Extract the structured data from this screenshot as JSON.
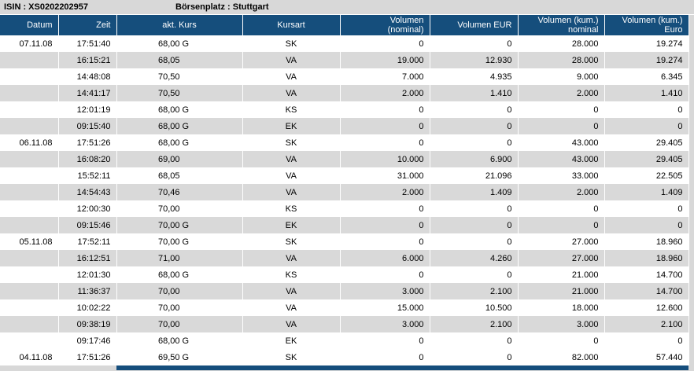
{
  "colors": {
    "header_bg": "#154e7c",
    "row_alt_bg": "#d9d9d9",
    "info_bg": "#d8d8d8",
    "page_bg": "#d8d8d8"
  },
  "info_bar": {
    "isin_label": "ISIN : XS0202202957",
    "boersenplatz_label": "Börsenplatz : Stuttgart"
  },
  "table": {
    "columns": [
      {
        "label": "Datum",
        "align": "right"
      },
      {
        "label": "Zeit",
        "align": "right"
      },
      {
        "label": "akt. Kurs",
        "align": "center"
      },
      {
        "label": "Kursart",
        "align": "center"
      },
      {
        "label": "Volumen\n(nominal)",
        "align": "right"
      },
      {
        "label": "Volumen EUR",
        "align": "right"
      },
      {
        "label": "Volumen (kum.)\nnominal",
        "align": "right"
      },
      {
        "label": "Volumen (kum.)\nEuro",
        "align": "right"
      }
    ],
    "rows": [
      {
        "datum": "07.11.08",
        "zeit": "17:51:40",
        "kurs": "68,00",
        "kurs_suffix": "G",
        "kursart": "SK",
        "vol_nominal": "0",
        "vol_eur": "0",
        "vol_kum_nominal": "28.000",
        "vol_kum_euro": "19.274"
      },
      {
        "datum": "",
        "zeit": "16:15:21",
        "kurs": "68,05",
        "kurs_suffix": "",
        "kursart": "VA",
        "vol_nominal": "19.000",
        "vol_eur": "12.930",
        "vol_kum_nominal": "28.000",
        "vol_kum_euro": "19.274"
      },
      {
        "datum": "",
        "zeit": "14:48:08",
        "kurs": "70,50",
        "kurs_suffix": "",
        "kursart": "VA",
        "vol_nominal": "7.000",
        "vol_eur": "4.935",
        "vol_kum_nominal": "9.000",
        "vol_kum_euro": "6.345"
      },
      {
        "datum": "",
        "zeit": "14:41:17",
        "kurs": "70,50",
        "kurs_suffix": "",
        "kursart": "VA",
        "vol_nominal": "2.000",
        "vol_eur": "1.410",
        "vol_kum_nominal": "2.000",
        "vol_kum_euro": "1.410"
      },
      {
        "datum": "",
        "zeit": "12:01:19",
        "kurs": "68,00",
        "kurs_suffix": "G",
        "kursart": "KS",
        "vol_nominal": "0",
        "vol_eur": "0",
        "vol_kum_nominal": "0",
        "vol_kum_euro": "0"
      },
      {
        "datum": "",
        "zeit": "09:15:40",
        "kurs": "68,00",
        "kurs_suffix": "G",
        "kursart": "EK",
        "vol_nominal": "0",
        "vol_eur": "0",
        "vol_kum_nominal": "0",
        "vol_kum_euro": "0"
      },
      {
        "datum": "06.11.08",
        "zeit": "17:51:26",
        "kurs": "68,00",
        "kurs_suffix": "G",
        "kursart": "SK",
        "vol_nominal": "0",
        "vol_eur": "0",
        "vol_kum_nominal": "43.000",
        "vol_kum_euro": "29.405"
      },
      {
        "datum": "",
        "zeit": "16:08:20",
        "kurs": "69,00",
        "kurs_suffix": "",
        "kursart": "VA",
        "vol_nominal": "10.000",
        "vol_eur": "6.900",
        "vol_kum_nominal": "43.000",
        "vol_kum_euro": "29.405"
      },
      {
        "datum": "",
        "zeit": "15:52:11",
        "kurs": "68,05",
        "kurs_suffix": "",
        "kursart": "VA",
        "vol_nominal": "31.000",
        "vol_eur": "21.096",
        "vol_kum_nominal": "33.000",
        "vol_kum_euro": "22.505"
      },
      {
        "datum": "",
        "zeit": "14:54:43",
        "kurs": "70,46",
        "kurs_suffix": "",
        "kursart": "VA",
        "vol_nominal": "2.000",
        "vol_eur": "1.409",
        "vol_kum_nominal": "2.000",
        "vol_kum_euro": "1.409"
      },
      {
        "datum": "",
        "zeit": "12:00:30",
        "kurs": "70,00",
        "kurs_suffix": "",
        "kursart": "KS",
        "vol_nominal": "0",
        "vol_eur": "0",
        "vol_kum_nominal": "0",
        "vol_kum_euro": "0"
      },
      {
        "datum": "",
        "zeit": "09:15:46",
        "kurs": "70,00",
        "kurs_suffix": "G",
        "kursart": "EK",
        "vol_nominal": "0",
        "vol_eur": "0",
        "vol_kum_nominal": "0",
        "vol_kum_euro": "0"
      },
      {
        "datum": "05.11.08",
        "zeit": "17:52:11",
        "kurs": "70,00",
        "kurs_suffix": "G",
        "kursart": "SK",
        "vol_nominal": "0",
        "vol_eur": "0",
        "vol_kum_nominal": "27.000",
        "vol_kum_euro": "18.960"
      },
      {
        "datum": "",
        "zeit": "16:12:51",
        "kurs": "71,00",
        "kurs_suffix": "",
        "kursart": "VA",
        "vol_nominal": "6.000",
        "vol_eur": "4.260",
        "vol_kum_nominal": "27.000",
        "vol_kum_euro": "18.960"
      },
      {
        "datum": "",
        "zeit": "12:01:30",
        "kurs": "68,00",
        "kurs_suffix": "G",
        "kursart": "KS",
        "vol_nominal": "0",
        "vol_eur": "0",
        "vol_kum_nominal": "21.000",
        "vol_kum_euro": "14.700"
      },
      {
        "datum": "",
        "zeit": "11:36:37",
        "kurs": "70,00",
        "kurs_suffix": "",
        "kursart": "VA",
        "vol_nominal": "3.000",
        "vol_eur": "2.100",
        "vol_kum_nominal": "21.000",
        "vol_kum_euro": "14.700"
      },
      {
        "datum": "",
        "zeit": "10:02:22",
        "kurs": "70,00",
        "kurs_suffix": "",
        "kursart": "VA",
        "vol_nominal": "15.000",
        "vol_eur": "10.500",
        "vol_kum_nominal": "18.000",
        "vol_kum_euro": "12.600"
      },
      {
        "datum": "",
        "zeit": "09:38:19",
        "kurs": "70,00",
        "kurs_suffix": "",
        "kursart": "VA",
        "vol_nominal": "3.000",
        "vol_eur": "2.100",
        "vol_kum_nominal": "3.000",
        "vol_kum_euro": "2.100"
      },
      {
        "datum": "",
        "zeit": "09:17:46",
        "kurs": "68,00",
        "kurs_suffix": "G",
        "kursart": "EK",
        "vol_nominal": "0",
        "vol_eur": "0",
        "vol_kum_nominal": "0",
        "vol_kum_euro": "0"
      },
      {
        "datum": "04.11.08",
        "zeit": "17:51:26",
        "kurs": "69,50",
        "kurs_suffix": "G",
        "kursart": "SK",
        "vol_nominal": "0",
        "vol_eur": "0",
        "vol_kum_nominal": "82.000",
        "vol_kum_euro": "57.440"
      }
    ]
  }
}
